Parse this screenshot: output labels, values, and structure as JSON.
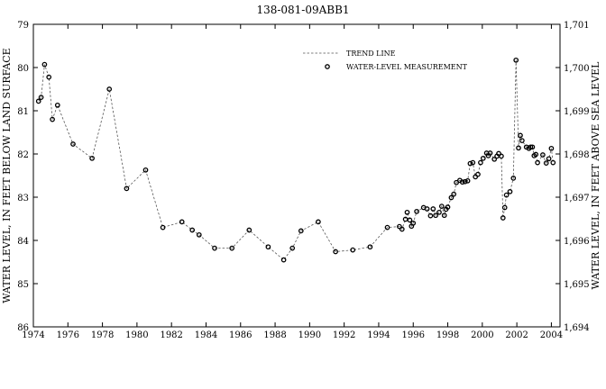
{
  "chart_data": {
    "type": "scatter",
    "title": "138-081-09ABB1",
    "xlabel": "",
    "ylabel_left": "WATER LEVEL, IN FEET BELOW LAND SURFACE",
    "ylabel_right": "WATER LEVEL, IN FEET ABOVE SEA LEVEL",
    "xlim": [
      1974,
      2004.5
    ],
    "ylim_left": [
      79,
      86
    ],
    "ylim_left_inverted": true,
    "ylim_right": [
      1694,
      1701
    ],
    "x_ticks": [
      "1974",
      "1976",
      "1978",
      "1980",
      "1982",
      "1984",
      "1986",
      "1988",
      "1990",
      "1992",
      "1994",
      "1996",
      "1998",
      "2000",
      "2002",
      "2004"
    ],
    "y_ticks_left": [
      "79",
      "80",
      "81",
      "82",
      "83",
      "84",
      "85",
      "86"
    ],
    "y_ticks_right": [
      "1,701",
      "1,700",
      "1,699",
      "1,698",
      "1,697",
      "1,696",
      "1,695",
      "1,694"
    ],
    "grid": false,
    "legend_position": "top-right",
    "legend": [
      {
        "label": "TREND LINE",
        "style": "dashed-line"
      },
      {
        "label": "WATER-LEVEL MEASUREMENT",
        "style": "open-circle-marker"
      }
    ],
    "colors": {
      "line": "#555555",
      "marker": "#000000",
      "axis": "#000000"
    },
    "series": [
      {
        "name": "WATER-LEVEL MEASUREMENT",
        "x": [
          1974.3,
          1974.45,
          1974.65,
          1974.9,
          1975.1,
          1975.4,
          1976.3,
          1977.4,
          1978.4,
          1979.4,
          1980.5,
          1981.5,
          1982.6,
          1983.2,
          1983.6,
          1984.5,
          1985.5,
          1986.5,
          1987.6,
          1988.5,
          1989,
          1989.5,
          1990.5,
          1991.5,
          1992.5,
          1993.5,
          1994.5,
          1995.2,
          1995.35,
          1995.55,
          1995.65,
          1995.8,
          1995.9,
          1996,
          1996.2,
          1996.6,
          1996.8,
          1997,
          1997.15,
          1997.3,
          1997.5,
          1997.65,
          1997.8,
          1997.9,
          1998,
          1998.2,
          1998.35,
          1998.5,
          1998.7,
          1998.85,
          1999,
          1999.15,
          1999.3,
          1999.45,
          1999.6,
          1999.75,
          1999.9,
          2000.05,
          2000.25,
          2000.35,
          2000.45,
          2000.7,
          2000.85,
          2000.95,
          2001.1,
          2001.2,
          2001.3,
          2001.4,
          2001.6,
          2001.8,
          2001.95,
          2002.1,
          2002.2,
          2002.3,
          2002.55,
          2002.7,
          2002.8,
          2002.9,
          2003,
          2003.1,
          2003.2,
          2003.5,
          2003.7,
          2003.85,
          2004,
          2004.1
        ],
        "y": [
          80.78,
          80.69,
          79.93,
          80.22,
          81.2,
          80.87,
          81.77,
          82.1,
          80.5,
          82.8,
          82.37,
          83.7,
          83.57,
          83.76,
          83.87,
          84.18,
          84.18,
          83.76,
          84.15,
          84.45,
          84.18,
          83.78,
          83.57,
          84.26,
          84.22,
          84.15,
          83.7,
          83.68,
          83.74,
          83.51,
          83.35,
          83.53,
          83.67,
          83.6,
          83.33,
          83.24,
          83.27,
          83.43,
          83.27,
          83.42,
          83.35,
          83.21,
          83.42,
          83.28,
          83.23,
          83.01,
          82.93,
          82.66,
          82.61,
          82.65,
          82.64,
          82.62,
          82.22,
          82.2,
          82.53,
          82.47,
          82.2,
          82.1,
          81.98,
          82.04,
          81.98,
          82.12,
          82.05,
          81.99,
          82.05,
          83.48,
          83.24,
          82.95,
          82.87,
          82.56,
          79.83,
          81.86,
          81.57,
          81.69,
          81.84,
          81.87,
          81.84,
          81.84,
          82.04,
          82.01,
          82.2,
          82.02,
          82.21,
          82.11,
          81.87,
          82.2
        ]
      }
    ]
  }
}
